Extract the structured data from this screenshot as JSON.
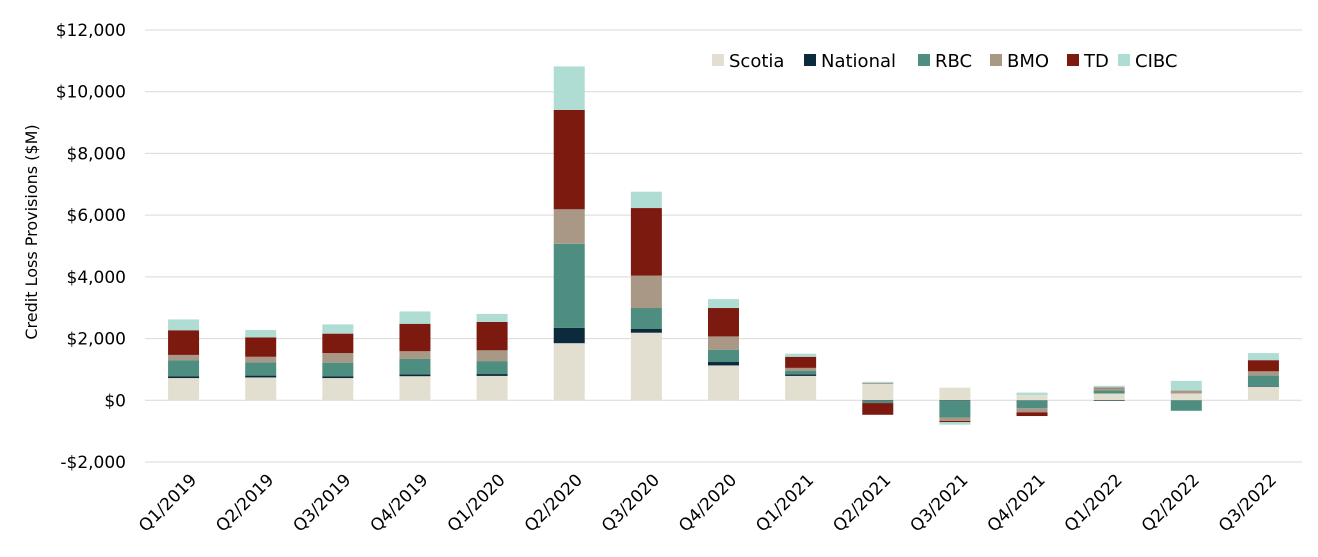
{
  "chart_data": {
    "type": "bar",
    "stacked": true,
    "title": "",
    "xlabel": "",
    "ylabel": "Credit Loss Provisions ($M)",
    "ylim": [
      -2000,
      12000
    ],
    "yticks": [
      -2000,
      0,
      2000,
      4000,
      6000,
      8000,
      10000,
      12000
    ],
    "ytick_labels": [
      "-$2,000",
      "$0",
      "$2,000",
      "$4,000",
      "$6,000",
      "$8,000",
      "$10,000",
      "$12,000"
    ],
    "grid": true,
    "legend_position": "top-right",
    "categories": [
      "Q1/2019",
      "Q2/2019",
      "Q3/2019",
      "Q4/2019",
      "Q1/2020",
      "Q2/2020",
      "Q3/2020",
      "Q4/2020",
      "Q1/2021",
      "Q2/2021",
      "Q3/2021",
      "Q4/2021",
      "Q1/2022",
      "Q2/2022",
      "Q3/2022"
    ],
    "series": [
      {
        "name": "Scotia",
        "color": "#e3dfd0",
        "values": [
          720,
          740,
          720,
          780,
          790,
          1850,
          2190,
          1130,
          790,
          530,
          410,
          170,
          220,
          220,
          440
        ]
      },
      {
        "name": "National",
        "color": "#0b2a3c",
        "values": [
          60,
          60,
          60,
          60,
          60,
          500,
          120,
          110,
          50,
          -20,
          -20,
          -10,
          -20,
          -10,
          20
        ]
      },
      {
        "name": "RBC",
        "color": "#4e8e80",
        "values": [
          520,
          430,
          440,
          500,
          420,
          2720,
          680,
          400,
          110,
          -70,
          -540,
          -250,
          100,
          -330,
          340
        ]
      },
      {
        "name": "BMO",
        "color": "#a99886",
        "values": [
          170,
          180,
          310,
          250,
          350,
          1120,
          1050,
          430,
          100,
          30,
          -110,
          -130,
          70,
          80,
          140
        ]
      },
      {
        "name": "TD",
        "color": "#7d1a10",
        "values": [
          800,
          630,
          630,
          890,
          920,
          3220,
          2190,
          920,
          360,
          -380,
          -40,
          -120,
          20,
          10,
          360
        ]
      },
      {
        "name": "CIBC",
        "color": "#b0ddd3",
        "values": [
          350,
          240,
          300,
          400,
          260,
          1410,
          530,
          290,
          100,
          40,
          -80,
          80,
          60,
          320,
          230
        ]
      }
    ]
  }
}
